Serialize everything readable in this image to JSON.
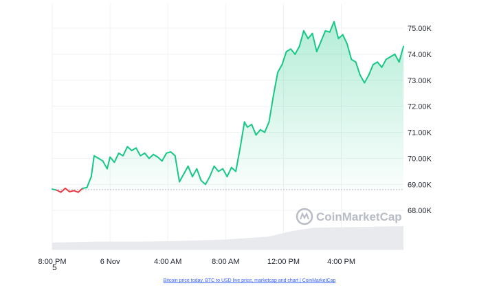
{
  "chart_data": {
    "type": "area",
    "y_ticks": [
      "68.00K",
      "69.00K",
      "70.00K",
      "71.00K",
      "72.00K",
      "73.00K",
      "74.00K",
      "75.00K"
    ],
    "y_tick_values": [
      68000,
      69000,
      70000,
      71000,
      72000,
      73000,
      74000,
      75000
    ],
    "ylim": [
      66500,
      75950
    ],
    "x_ticks": [
      "8:00 PM",
      "6 Nov",
      "4:00 AM",
      "8:00 AM",
      "12:00 PM",
      "4:00 PM"
    ],
    "x_tick_hours": [
      0,
      4,
      8,
      12,
      16,
      20
    ],
    "xlim_hours": [
      0,
      24.3
    ],
    "baseline_price": 68800,
    "grid": true,
    "colors": {
      "up": "#16c784",
      "down": "#ea3943",
      "volume": "#e8eaee",
      "baseline": "#b1b5c3",
      "grid": "#eff2f5"
    },
    "price_series": {
      "x_hours": [
        0,
        0.3,
        0.6,
        0.9,
        1.2,
        1.5,
        1.8,
        2.1,
        2.4,
        2.7,
        2.9,
        3.2,
        3.5,
        3.8,
        4.0,
        4.3,
        4.6,
        4.9,
        5.2,
        5.5,
        5.8,
        6.1,
        6.4,
        6.7,
        7.0,
        7.3,
        7.6,
        7.9,
        8.2,
        8.5,
        8.8,
        9.1,
        9.4,
        9.7,
        10.0,
        10.3,
        10.6,
        10.9,
        11.2,
        11.5,
        11.8,
        12.1,
        12.4,
        12.7,
        13.0,
        13.3,
        13.5,
        13.8,
        14.1,
        14.4,
        14.7,
        15.0,
        15.3,
        15.6,
        15.9,
        16.2,
        16.5,
        16.8,
        17.1,
        17.4,
        17.7,
        18.0,
        18.3,
        18.6,
        18.9,
        19.2,
        19.5,
        19.8,
        20.1,
        20.4,
        20.7,
        21.0,
        21.3,
        21.6,
        21.9,
        22.2,
        22.5,
        22.8,
        23.1,
        23.4,
        23.7,
        24.0,
        24.3
      ],
      "values": [
        68820,
        68780,
        68700,
        68850,
        68720,
        68760,
        68700,
        68850,
        68880,
        69300,
        70100,
        70000,
        69900,
        69600,
        70050,
        69850,
        70200,
        70100,
        70450,
        70300,
        70400,
        70100,
        70200,
        70000,
        70150,
        70050,
        69900,
        70200,
        70250,
        70100,
        69100,
        69400,
        69700,
        69300,
        69600,
        69150,
        69000,
        69300,
        69700,
        69500,
        69600,
        69300,
        69650,
        69500,
        70400,
        71400,
        71200,
        71300,
        70900,
        71100,
        71000,
        71400,
        72400,
        73300,
        73600,
        74100,
        74200,
        74000,
        74300,
        74900,
        74600,
        74800,
        74100,
        74500,
        74900,
        74850,
        75250,
        74600,
        74750,
        74400,
        73800,
        73700,
        73200,
        72900,
        73200,
        73600,
        73700,
        73500,
        73800,
        73900,
        74000,
        73700,
        74300
      ]
    },
    "volume_series": {
      "x_hours": [
        0,
        3,
        6,
        9,
        12,
        15,
        16.5,
        18,
        21,
        24.3
      ],
      "values": [
        0.16,
        0.18,
        0.18,
        0.2,
        0.23,
        0.3,
        0.42,
        0.5,
        0.52,
        0.54
      ]
    }
  },
  "watermark": {
    "text": "CoinMarketCap",
    "icon": "coinmarketcap-logo-icon"
  },
  "stray_label": "5",
  "footer_link": "Bitcoin price today, BTC to USD live price, marketcap and chart | CoinMarketCap"
}
